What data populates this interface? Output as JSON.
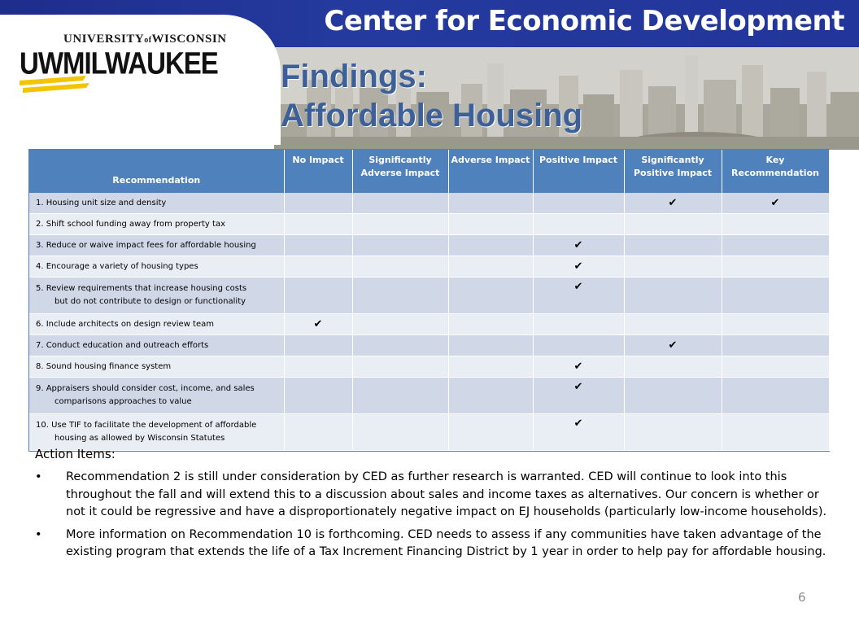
{
  "header": {
    "title": "Center for Economic Development",
    "logo_univ_part1": "UNIVERSITY",
    "logo_of": "of",
    "logo_univ_part2": "WISCONSIN",
    "logo_mark": "UWMILWAUKEE"
  },
  "slide": {
    "title_line1": "Findings:",
    "title_line2": "Affordable Housing",
    "page_number": "6"
  },
  "table": {
    "headers": {
      "recommendation": "Recommendation",
      "no_impact": "No Impact",
      "sig_adverse": "Significantly Adverse Impact",
      "adverse": "Adverse Impact",
      "positive": "Positive Impact",
      "sig_positive": "Significantly Positive Impact",
      "key": "Key Recommendation"
    },
    "check_glyph": "✔",
    "rows": [
      {
        "line1": "1. Housing unit size and density",
        "line2": "",
        "no_impact": "",
        "sig_adverse": "",
        "adverse": "",
        "positive": "",
        "sig_positive": "✔",
        "key": "✔"
      },
      {
        "line1": "2. Shift school funding away from property tax",
        "line2": "",
        "no_impact": "",
        "sig_adverse": "",
        "adverse": "",
        "positive": "",
        "sig_positive": "",
        "key": ""
      },
      {
        "line1": "3. Reduce or waive impact fees for affordable housing",
        "line2": "",
        "no_impact": "",
        "sig_adverse": "",
        "adverse": "",
        "positive": "✔",
        "sig_positive": "",
        "key": ""
      },
      {
        "line1": "4. Encourage a variety of housing types",
        "line2": "",
        "no_impact": "",
        "sig_adverse": "",
        "adverse": "",
        "positive": "✔",
        "sig_positive": "",
        "key": ""
      },
      {
        "line1": "5. Review requirements that increase housing costs",
        "line2": "but do not contribute to design or functionality",
        "no_impact": "",
        "sig_adverse": "",
        "adverse": "",
        "positive": "✔",
        "sig_positive": "",
        "key": ""
      },
      {
        "line1": "6. Include architects on design review team",
        "line2": "",
        "no_impact": "✔",
        "sig_adverse": "",
        "adverse": "",
        "positive": "",
        "sig_positive": "",
        "key": ""
      },
      {
        "line1": "7. Conduct education and outreach efforts",
        "line2": "",
        "no_impact": "",
        "sig_adverse": "",
        "adverse": "",
        "positive": "",
        "sig_positive": "✔",
        "key": ""
      },
      {
        "line1": "8. Sound housing finance system",
        "line2": "",
        "no_impact": "",
        "sig_adverse": "",
        "adverse": "",
        "positive": "✔",
        "sig_positive": "",
        "key": ""
      },
      {
        "line1": "9. Appraisers should consider cost, income, and sales",
        "line2": "comparisons approaches to value",
        "no_impact": "",
        "sig_adverse": "",
        "adverse": "",
        "positive": "✔",
        "sig_positive": "",
        "key": ""
      },
      {
        "line1": "10. Use TIF to facilitate the development of affordable",
        "line2": "housing as allowed by Wisconsin Statutes",
        "no_impact": "",
        "sig_adverse": "",
        "adverse": "",
        "positive": "✔",
        "sig_positive": "",
        "key": ""
      }
    ]
  },
  "action_items": {
    "heading": "Action Items:",
    "bullet_glyph": "•",
    "items": [
      "Recommendation 2 is still under consideration by CED as further research is warranted. CED will continue to look into this throughout the fall and will extend this to a discussion about sales and income taxes as alternatives. Our concern is whether or not it could be regressive and have a disproportionately negative impact on EJ households (particularly low-income households).",
      "More information on Recommendation 10 is forthcoming. CED needs to assess if any communities have taken advantage of the existing program that extends the life of a Tax Increment Financing District by 1 year in order to help pay for affordable housing."
    ]
  }
}
